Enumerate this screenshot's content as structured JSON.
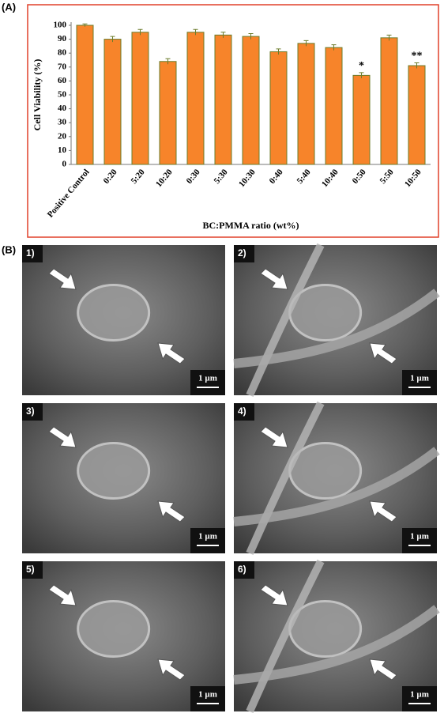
{
  "figure_labels": {
    "a": "(A)",
    "b": "(B)"
  },
  "chart_data": {
    "type": "bar",
    "categories": [
      "Positive Control",
      "0:20",
      "5:20",
      "10:20",
      "0:30",
      "5:30",
      "10:30",
      "0:40",
      "5:40",
      "10:40",
      "0:50",
      "5:50",
      "10:50"
    ],
    "values": [
      100,
      90,
      95,
      74,
      95,
      93,
      92,
      81,
      87,
      84,
      64,
      91,
      71
    ],
    "errors": [
      1,
      2,
      2,
      2,
      2,
      2,
      2,
      2,
      2,
      2,
      2,
      2,
      2
    ],
    "color": "#f7842a",
    "edge_color": "#6b7c2b",
    "ylim": [
      0,
      100
    ],
    "yticks": [
      0,
      10,
      20,
      30,
      40,
      50,
      60,
      70,
      80,
      90,
      100
    ],
    "y_label": "Cell Viability (%)",
    "x_label": "BC:PMMA ratio (wt%)",
    "annotations": [
      {
        "text": "*",
        "category": "0:50"
      },
      {
        "text": "**",
        "category": "10:50"
      }
    ]
  },
  "panels": [
    {
      "label": "1)",
      "scale": "1 µm"
    },
    {
      "label": "2)",
      "scale": "1 µm"
    },
    {
      "label": "3)",
      "scale": "1 µm"
    },
    {
      "label": "4)",
      "scale": "1 µm"
    },
    {
      "label": "5)",
      "scale": "1 µm"
    },
    {
      "label": "6)",
      "scale": "1 µm"
    }
  ]
}
